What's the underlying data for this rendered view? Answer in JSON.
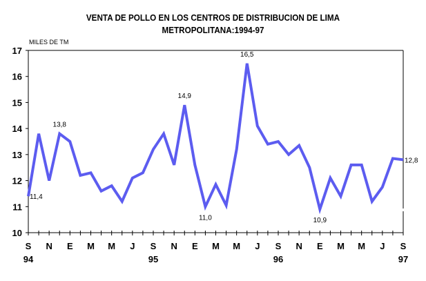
{
  "chart_data": {
    "type": "line",
    "title": "VENTA DE POLLO EN LOS CENTROS DE DISTRIBUCION DE LIMA",
    "subtitle": "METROPOLITANA:1994-97",
    "ylabel": "MILES DE TM",
    "xlabel": "",
    "ylim": [
      10,
      17
    ],
    "yticks": [
      10,
      11,
      12,
      13,
      14,
      15,
      16,
      17
    ],
    "grid": false,
    "line_color": "#5c5cf0",
    "x_tick_labels": [
      {
        "index": 0,
        "label": "S",
        "year": "94"
      },
      {
        "index": 2,
        "label": "N",
        "year": ""
      },
      {
        "index": 4,
        "label": "E",
        "year": ""
      },
      {
        "index": 6,
        "label": "M",
        "year": ""
      },
      {
        "index": 8,
        "label": "M",
        "year": ""
      },
      {
        "index": 10,
        "label": "J",
        "year": ""
      },
      {
        "index": 12,
        "label": "S",
        "year": "95"
      },
      {
        "index": 14,
        "label": "N",
        "year": ""
      },
      {
        "index": 16,
        "label": "E",
        "year": ""
      },
      {
        "index": 18,
        "label": "M",
        "year": ""
      },
      {
        "index": 20,
        "label": "M",
        "year": ""
      },
      {
        "index": 22,
        "label": "J",
        "year": ""
      },
      {
        "index": 24,
        "label": "S",
        "year": "96"
      },
      {
        "index": 26,
        "label": "N",
        "year": ""
      },
      {
        "index": 28,
        "label": "E",
        "year": ""
      },
      {
        "index": 30,
        "label": "M",
        "year": ""
      },
      {
        "index": 32,
        "label": "M",
        "year": ""
      },
      {
        "index": 34,
        "label": "J",
        "year": ""
      },
      {
        "index": 36,
        "label": "S",
        "year": "97"
      }
    ],
    "series": [
      {
        "name": "Venta de pollo",
        "values": [
          11.4,
          13.8,
          12.0,
          13.8,
          13.5,
          12.2,
          12.3,
          11.6,
          11.8,
          11.2,
          12.1,
          12.3,
          13.2,
          13.8,
          12.6,
          14.9,
          12.6,
          11.0,
          11.85,
          11.05,
          13.2,
          16.5,
          14.1,
          13.4,
          13.5,
          13.0,
          13.35,
          12.5,
          10.9,
          12.1,
          11.4,
          12.6,
          12.6,
          11.2,
          11.75,
          12.85,
          12.8
        ]
      }
    ],
    "annotations": [
      {
        "index": 0,
        "text": "11,4",
        "pos": "right"
      },
      {
        "index": 3,
        "text": "13,8",
        "pos": "above"
      },
      {
        "index": 15,
        "text": "14,9",
        "pos": "above"
      },
      {
        "index": 17,
        "text": "11,0",
        "pos": "below"
      },
      {
        "index": 21,
        "text": "16,5",
        "pos": "above"
      },
      {
        "index": 28,
        "text": "10,9",
        "pos": "below"
      },
      {
        "index": 36,
        "text": "12,8",
        "pos": "right"
      }
    ]
  }
}
